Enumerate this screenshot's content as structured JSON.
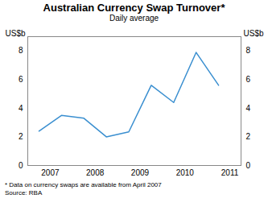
{
  "chart_data": {
    "type": "line",
    "title": "Australian Currency Swap Turnover*",
    "subtitle": "Daily average",
    "y_label": "US$b",
    "notes": [
      "*   Data on currency swaps are available from April 2007",
      "Source: RBA"
    ],
    "x": [
      2007.25,
      2007.75,
      2008.25,
      2008.75,
      2009.25,
      2009.75,
      2010.25,
      2010.75,
      2011.25
    ],
    "series": [
      {
        "name": "Australian Currency Swap Turnover",
        "color": "#3a8fd0",
        "values": [
          2.4,
          3.5,
          3.3,
          2.0,
          2.35,
          5.6,
          4.4,
          7.9,
          5.6
        ]
      }
    ],
    "xlim": [
      2007,
      2011.75
    ],
    "xticks": [
      {
        "value": 2007.5,
        "label": "2007"
      },
      {
        "value": 2008.5,
        "label": "2008"
      },
      {
        "value": 2009.5,
        "label": "2009"
      },
      {
        "value": 2010.5,
        "label": "2010"
      },
      {
        "value": 2011.5,
        "label": "2011"
      }
    ],
    "ylim": [
      0,
      9
    ],
    "yticks": [
      0,
      2,
      4,
      6,
      8
    ],
    "grid": false
  }
}
